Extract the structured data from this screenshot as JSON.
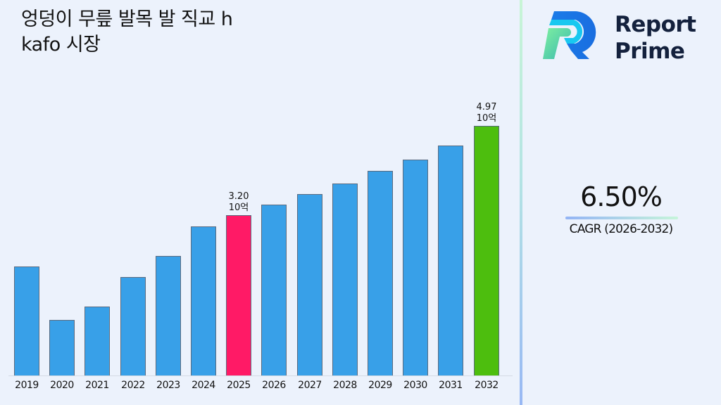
{
  "title": {
    "line1": "엉덩이 무릎 발목 발 직교 h",
    "line2": "kafo 시장"
  },
  "brand": {
    "name_line1": "Report",
    "name_line2": "Prime",
    "logo_icon": "report-prime-r-logo-icon"
  },
  "cagr": {
    "value": "6.50%",
    "label": "CAGR (2026-2032)"
  },
  "colors": {
    "bar_default": "#38a0e8",
    "bar_highlight_base": "#ff1a66",
    "bar_highlight_end": "#4dbe0e",
    "background": "#ecf2fc"
  },
  "chart_data": {
    "type": "bar",
    "title": "엉덩이 무릎 발목 발 직교 h kafo 시장",
    "xlabel": "",
    "ylabel": "",
    "unit": "10억",
    "categories": [
      "2019",
      "2020",
      "2021",
      "2022",
      "2023",
      "2024",
      "2025",
      "2026",
      "2027",
      "2028",
      "2029",
      "2030",
      "2031",
      "2032"
    ],
    "values": [
      2.17,
      1.11,
      1.37,
      1.96,
      2.38,
      2.97,
      3.2,
      3.41,
      3.62,
      3.83,
      4.08,
      4.3,
      4.58,
      4.97
    ],
    "annotations": [
      {
        "category": "2025",
        "value_text": "3.20",
        "unit_text": "10억"
      },
      {
        "category": "2032",
        "value_text": "4.97",
        "unit_text": "10억"
      }
    ],
    "highlight": {
      "2025": "#ff1a66",
      "2032": "#4dbe0e"
    },
    "ylim": [
      0,
      5.2
    ],
    "grid": false,
    "legend": "none",
    "cagr": "6.50%",
    "cagr_period": "2026-2032"
  }
}
